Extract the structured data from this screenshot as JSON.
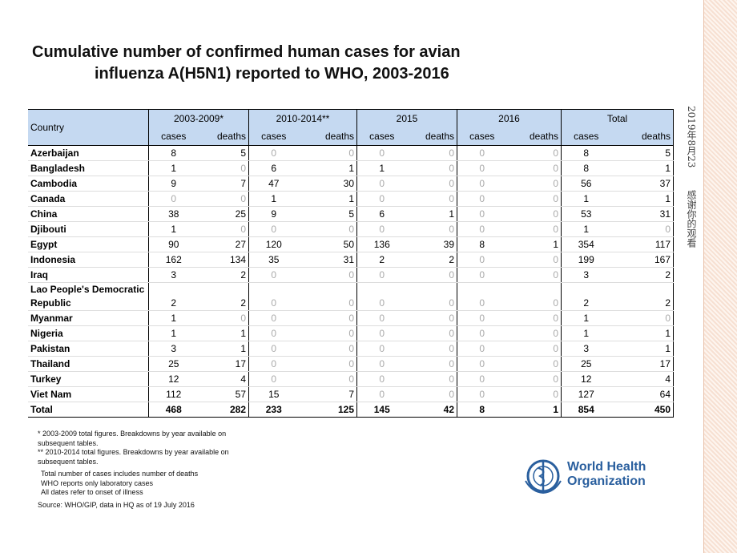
{
  "title": [
    "Cumulative number of confirmed human cases for avian",
    "influenza A(H5N1) reported to WHO, 2003-2016"
  ],
  "table": {
    "country_header": "Country",
    "groups": [
      "2003-2009*",
      "2010-2014**",
      "2015",
      "2016",
      "Total"
    ],
    "subheaders": [
      "cases",
      "deaths",
      "cases",
      "deaths",
      "cases",
      "deaths",
      "cases",
      "deaths",
      "cases",
      "deaths"
    ],
    "rows": [
      [
        "Azerbaijan",
        8,
        5,
        0,
        0,
        0,
        0,
        0,
        0,
        8,
        5
      ],
      [
        "Bangladesh",
        1,
        0,
        6,
        1,
        1,
        0,
        0,
        0,
        8,
        1
      ],
      [
        "Cambodia",
        9,
        7,
        47,
        30,
        0,
        0,
        0,
        0,
        56,
        37
      ],
      [
        "Canada",
        0,
        0,
        1,
        1,
        0,
        0,
        0,
        0,
        1,
        1
      ],
      [
        "China",
        38,
        25,
        9,
        5,
        6,
        1,
        0,
        0,
        53,
        31
      ],
      [
        "Djibouti",
        1,
        0,
        0,
        0,
        0,
        0,
        0,
        0,
        1,
        0
      ],
      [
        "Egypt",
        90,
        27,
        120,
        50,
        136,
        39,
        8,
        1,
        354,
        117
      ],
      [
        "Indonesia",
        162,
        134,
        35,
        31,
        2,
        2,
        0,
        0,
        199,
        167
      ],
      [
        "Iraq",
        3,
        2,
        0,
        0,
        0,
        0,
        0,
        0,
        3,
        2
      ],
      [
        "Lao People's Democratic Republic",
        2,
        2,
        0,
        0,
        0,
        0,
        0,
        0,
        2,
        2
      ],
      [
        "Myanmar",
        1,
        0,
        0,
        0,
        0,
        0,
        0,
        0,
        1,
        0
      ],
      [
        "Nigeria",
        1,
        1,
        0,
        0,
        0,
        0,
        0,
        0,
        1,
        1
      ],
      [
        "Pakistan",
        3,
        1,
        0,
        0,
        0,
        0,
        0,
        0,
        3,
        1
      ],
      [
        "Thailand",
        25,
        17,
        0,
        0,
        0,
        0,
        0,
        0,
        25,
        17
      ],
      [
        "Turkey",
        12,
        4,
        0,
        0,
        0,
        0,
        0,
        0,
        12,
        4
      ],
      [
        "Viet Nam",
        112,
        57,
        15,
        7,
        0,
        0,
        0,
        0,
        127,
        64
      ],
      [
        "Total",
        468,
        282,
        233,
        125,
        145,
        42,
        8,
        1,
        854,
        450
      ]
    ]
  },
  "notes": [
    "* 2003-2009 total figures. Breakdowns by year available on subsequent tables.",
    "** 2010-2014  total figures. Breakdowns by year available on subsequent tables.",
    "Total number of cases includes number of deaths",
    "WHO reports only laboratory cases",
    "All dates refer to onset of illness",
    "Source: WHO/GIP, data in HQ as of 19 July 2016"
  ],
  "logo": [
    "World Health",
    "Organization"
  ],
  "side": [
    "2019年8月23",
    "感谢你的观看"
  ]
}
